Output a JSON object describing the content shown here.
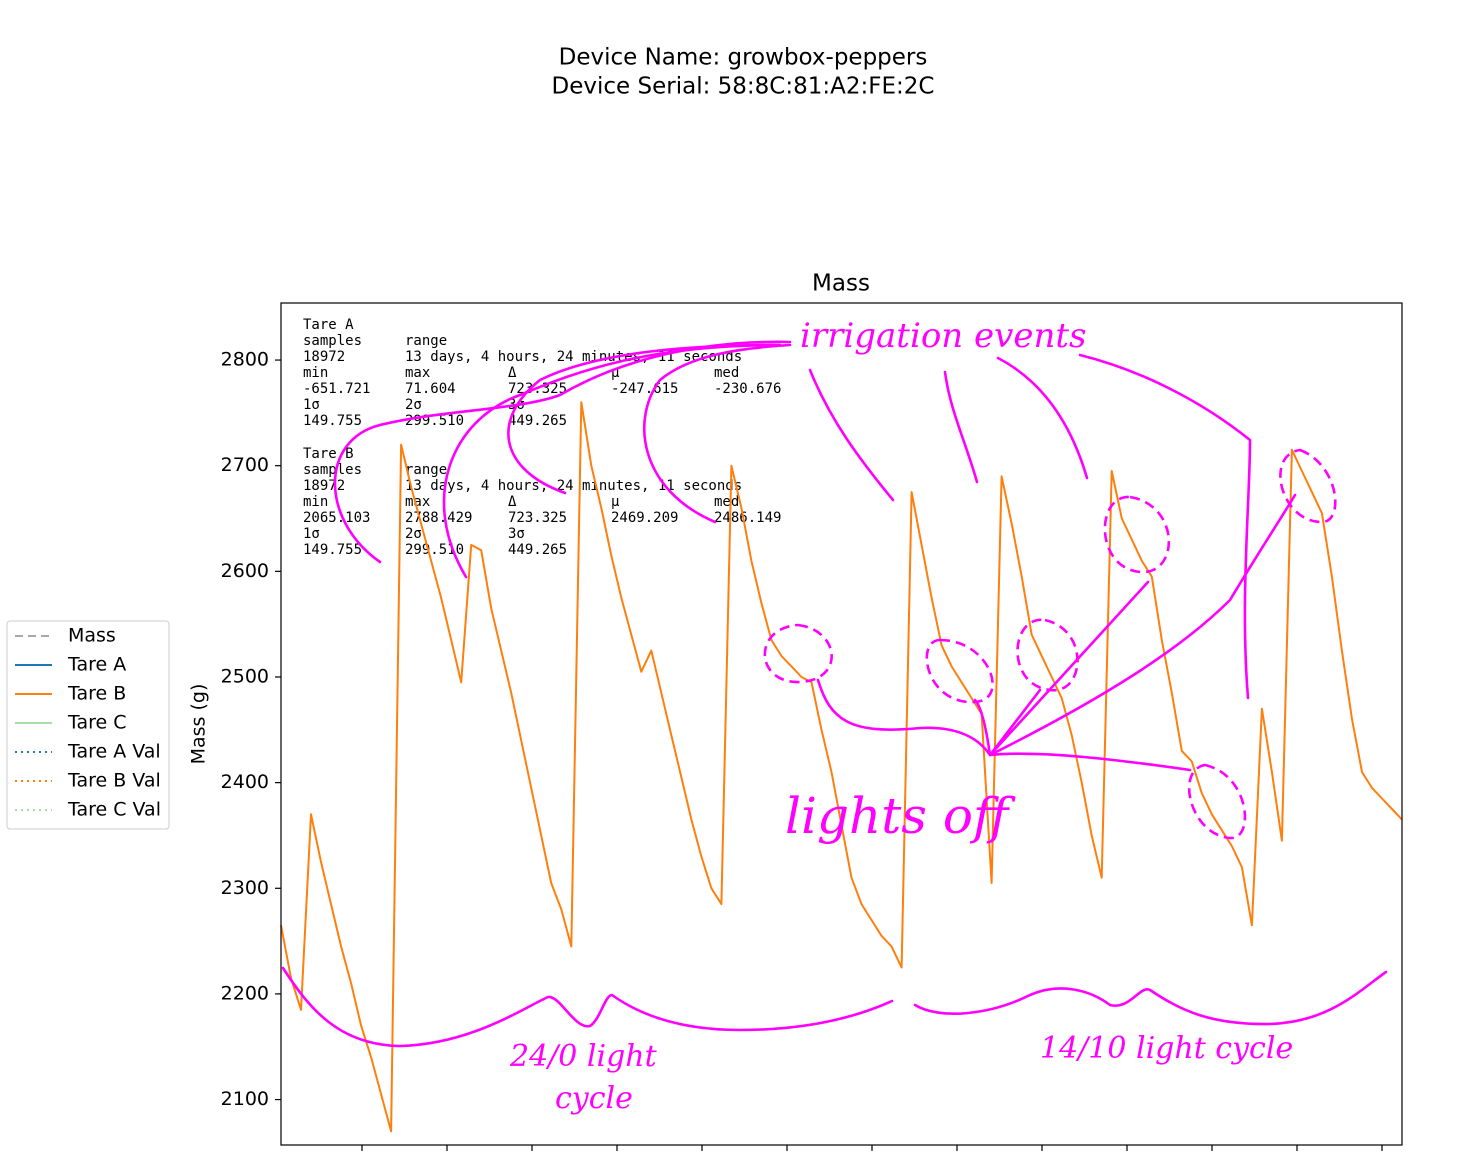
{
  "chart_data": {
    "type": "line",
    "suptitle": [
      "Device Name: growbox-peppers",
      "Device Serial: 58:8C:81:A2:FE:2C"
    ],
    "title": "Mass",
    "ylabel": "Mass (g)",
    "ylim": [
      2057,
      2854
    ],
    "yticks": [
      2100,
      2200,
      2300,
      2400,
      2500,
      2600,
      2700,
      2800
    ],
    "series": [
      {
        "name": "Mass",
        "color": "#a9a9a9",
        "dash": "dashed",
        "values": []
      },
      {
        "name": "Tare A",
        "color": "#1f77b4",
        "dash": "solid",
        "values": []
      },
      {
        "name": "Tare B",
        "color": "#ff7f0e",
        "dash": "solid",
        "values": [
          2265,
          2215,
          2185,
          2370,
          2325,
          2285,
          2245,
          2210,
          2170,
          2140,
          2105,
          2070,
          2720,
          2680,
          2645,
          2610,
          2575,
          2535,
          2495,
          2625,
          2620,
          2565,
          2525,
          2485,
          2440,
          2395,
          2350,
          2305,
          2280,
          2245,
          2760,
          2700,
          2660,
          2615,
          2575,
          2540,
          2505,
          2525,
          2485,
          2445,
          2405,
          2365,
          2330,
          2300,
          2285,
          2700,
          2660,
          2610,
          2570,
          2535,
          2520,
          2510,
          2500,
          2495,
          2450,
          2410,
          2360,
          2310,
          2285,
          2270,
          2255,
          2245,
          2225,
          2675,
          2625,
          2575,
          2530,
          2510,
          2495,
          2480,
          2465,
          2305,
          2690,
          2645,
          2595,
          2540,
          2520,
          2500,
          2480,
          2445,
          2400,
          2350,
          2310,
          2695,
          2650,
          2630,
          2610,
          2595,
          2535,
          2485,
          2430,
          2420,
          2390,
          2370,
          2355,
          2340,
          2320,
          2265,
          2470,
          2410,
          2345,
          2715,
          2695,
          2675,
          2655,
          2595,
          2525,
          2460,
          2410,
          2395,
          2385,
          2375,
          2365
        ]
      },
      {
        "name": "Tare C",
        "color": "#a8dca8",
        "dash": "solid",
        "values": []
      },
      {
        "name": "Tare A Val",
        "color": "#1f77b4",
        "dash": "dotted",
        "values": []
      },
      {
        "name": "Tare B Val",
        "color": "#ff7f0e",
        "dash": "dotted",
        "values": []
      },
      {
        "name": "Tare C Val",
        "color": "#a8dca8",
        "dash": "dotted",
        "values": []
      }
    ],
    "legend": "outside-left",
    "stats": [
      {
        "title": "Tare A",
        "rows": [
          [
            "samples",
            "range"
          ],
          [
            "18972",
            "13 days, 4 hours, 24 minutes, 11 seconds"
          ],
          [
            "min",
            "max",
            "Δ",
            "μ",
            "med"
          ],
          [
            "-651.721",
            "71.604",
            "723.325",
            "-247.615",
            "-230.676"
          ],
          [
            "1σ",
            "2σ",
            "3σ"
          ],
          [
            "149.755",
            "299.510",
            "449.265"
          ]
        ]
      },
      {
        "title": "Tare B",
        "rows": [
          [
            "samples",
            "range"
          ],
          [
            "18972",
            "13 days, 4 hours, 24 minutes, 11 seconds"
          ],
          [
            "min",
            "max",
            "Δ",
            "μ",
            "med"
          ],
          [
            "2065.103",
            "2788.429",
            "723.325",
            "2469.209",
            "2486.149"
          ],
          [
            "1σ",
            "2σ",
            "3σ"
          ],
          [
            "149.755",
            "299.510",
            "449.265"
          ]
        ]
      }
    ],
    "annotations": {
      "irrigation": "irrigation events",
      "lights_off": "lights off",
      "cycle_24": [
        "24/0 light",
        "cycle"
      ],
      "cycle_14": "14/10 light cycle"
    }
  }
}
